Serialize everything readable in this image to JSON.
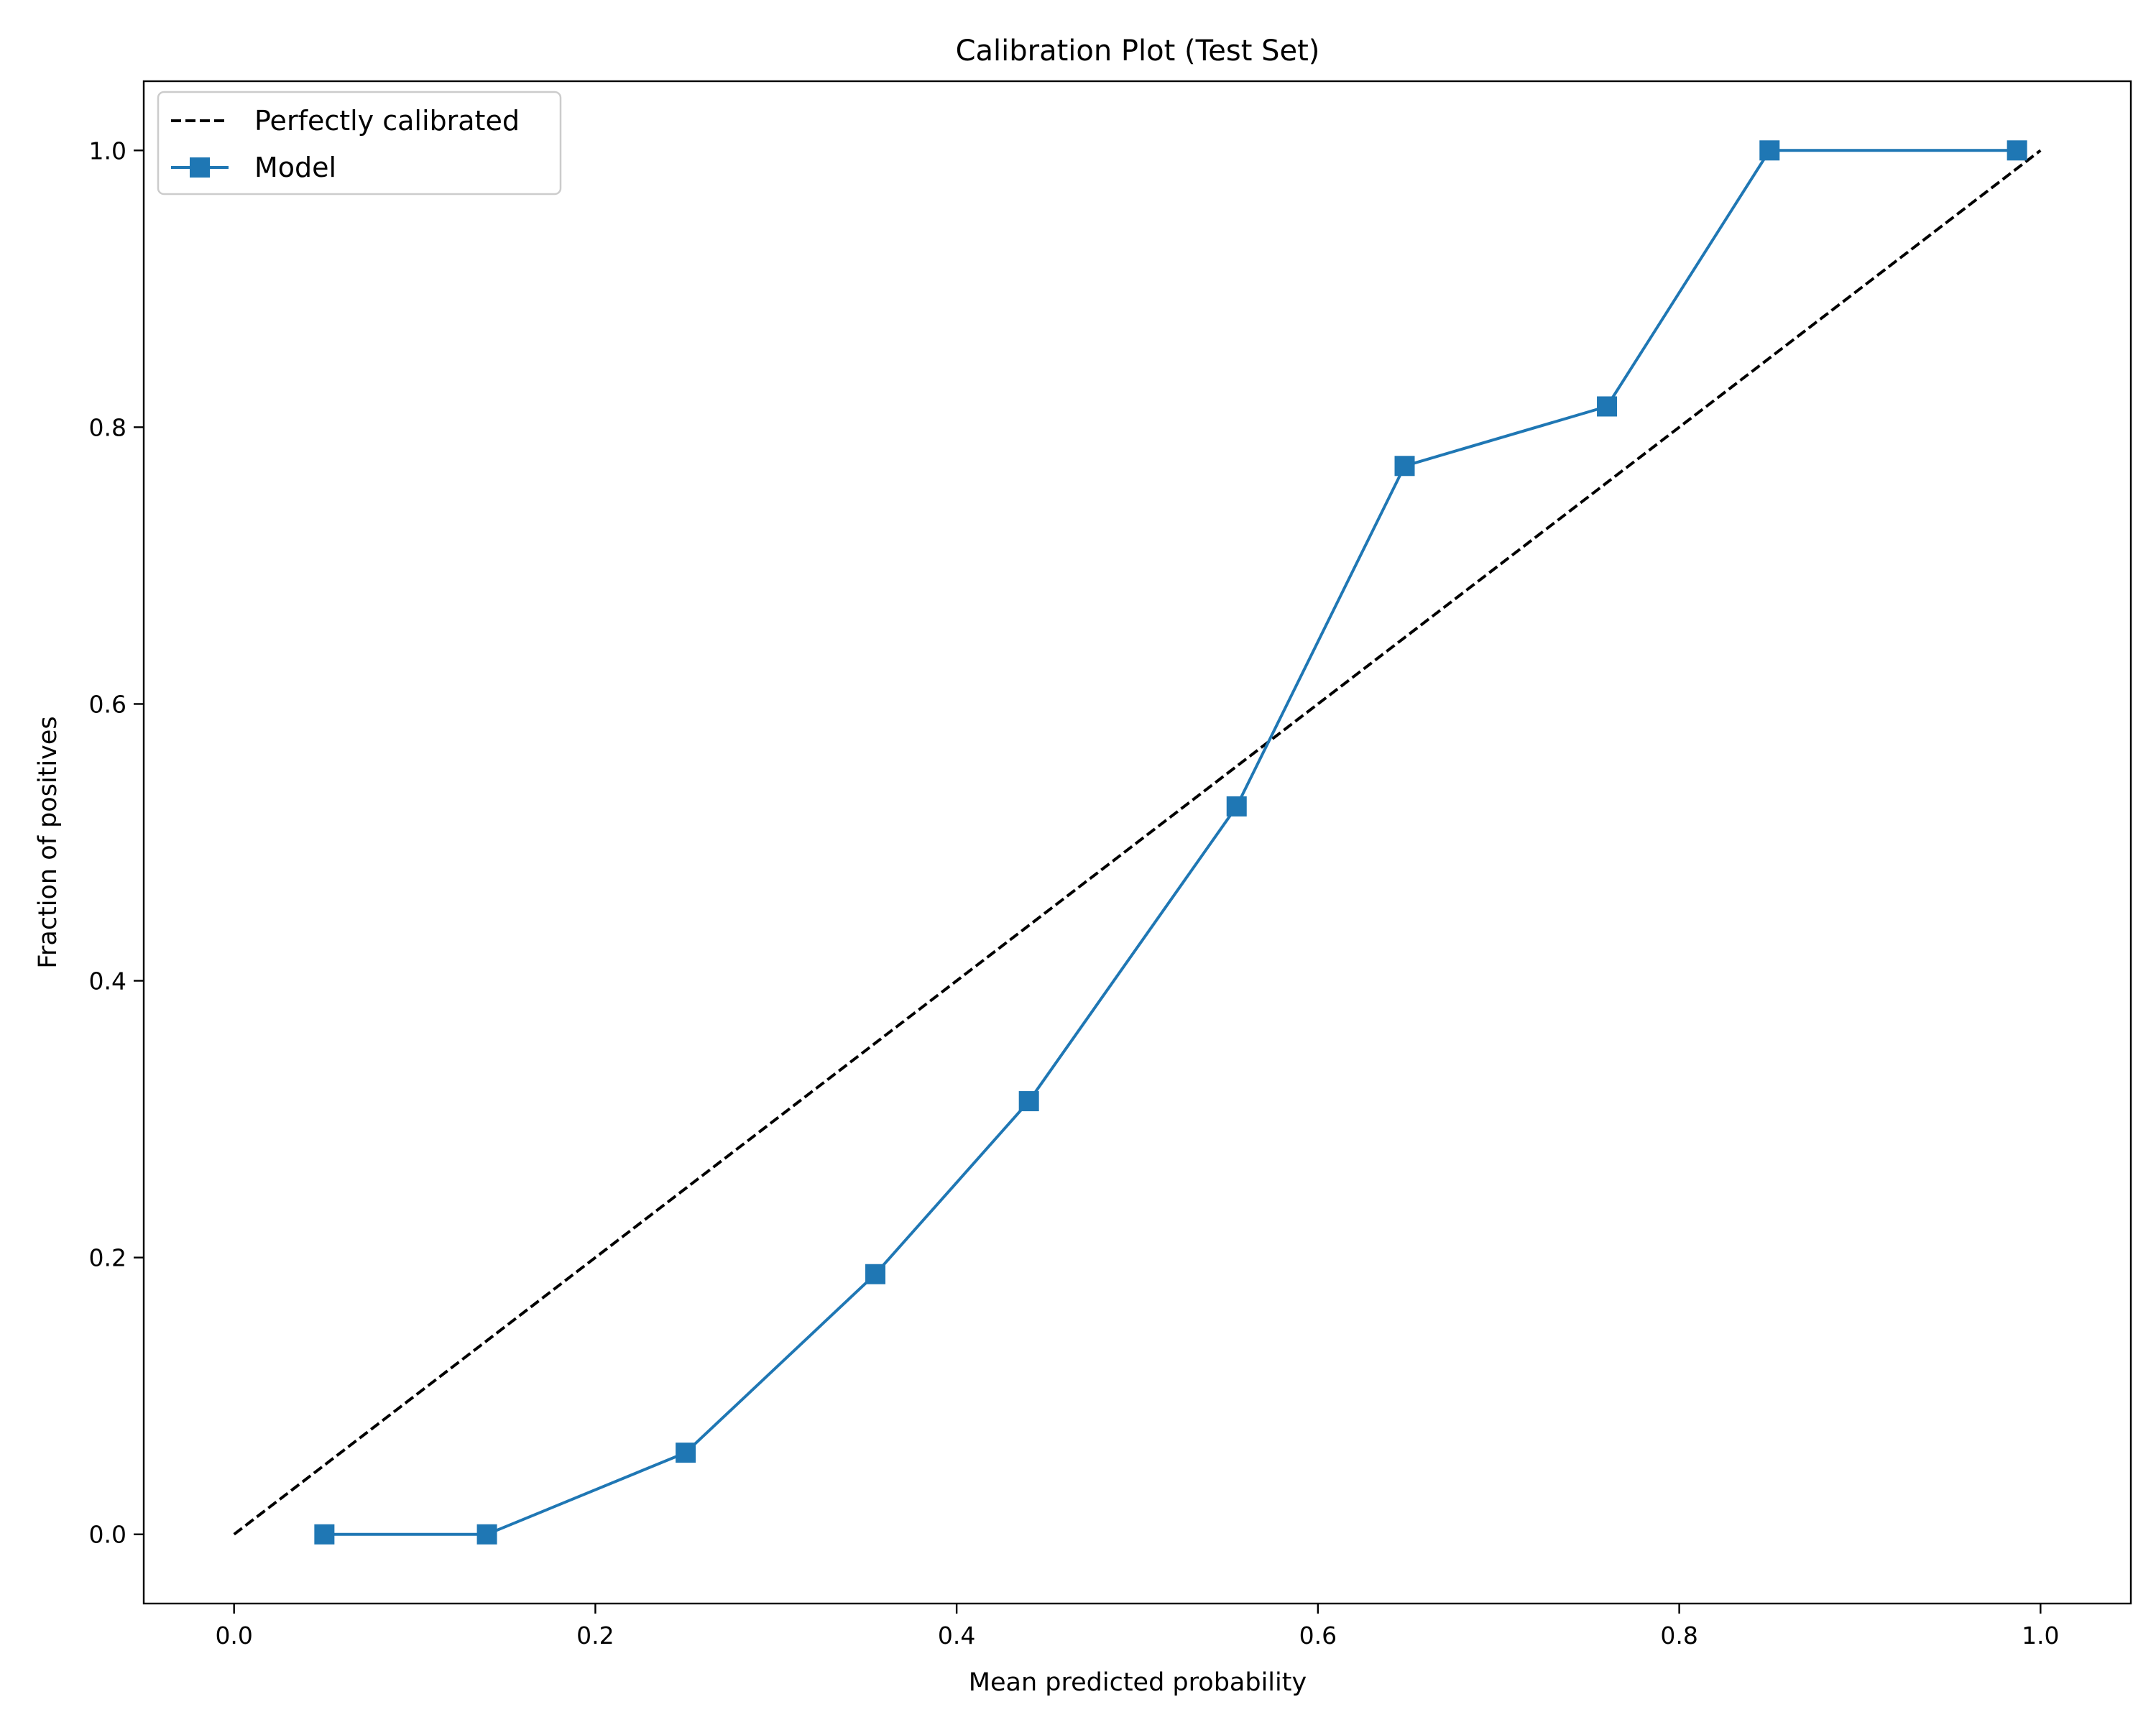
{
  "chart_data": {
    "type": "line",
    "title": "Calibration Plot (Test Set)",
    "xlabel": "Mean predicted probability",
    "ylabel": "Fraction of positives",
    "xlim": [
      -0.05,
      1.05
    ],
    "ylim": [
      -0.05,
      1.05
    ],
    "xticks": [
      0.0,
      0.2,
      0.4,
      0.6,
      0.8,
      1.0
    ],
    "yticks": [
      0.0,
      0.2,
      0.4,
      0.6,
      0.8,
      1.0
    ],
    "xtick_labels": [
      "0.0",
      "0.2",
      "0.4",
      "0.6",
      "0.8",
      "1.0"
    ],
    "ytick_labels": [
      "0.0",
      "0.2",
      "0.4",
      "0.6",
      "0.8",
      "1.0"
    ],
    "grid": false,
    "legend_position": "top-left",
    "series": [
      {
        "name": "Perfectly calibrated",
        "style": "dashed",
        "color": "#000000",
        "marker": "none",
        "x": [
          0.0,
          1.0
        ],
        "y": [
          0.0,
          1.0
        ]
      },
      {
        "name": "Model",
        "style": "solid",
        "color": "#1f77b4",
        "marker": "square",
        "x": [
          0.05,
          0.14,
          0.25,
          0.355,
          0.44,
          0.555,
          0.648,
          0.76,
          0.85,
          0.987
        ],
        "y": [
          0.0,
          0.0,
          0.059,
          0.188,
          0.313,
          0.526,
          0.772,
          0.815,
          1.0,
          1.0
        ]
      }
    ]
  }
}
